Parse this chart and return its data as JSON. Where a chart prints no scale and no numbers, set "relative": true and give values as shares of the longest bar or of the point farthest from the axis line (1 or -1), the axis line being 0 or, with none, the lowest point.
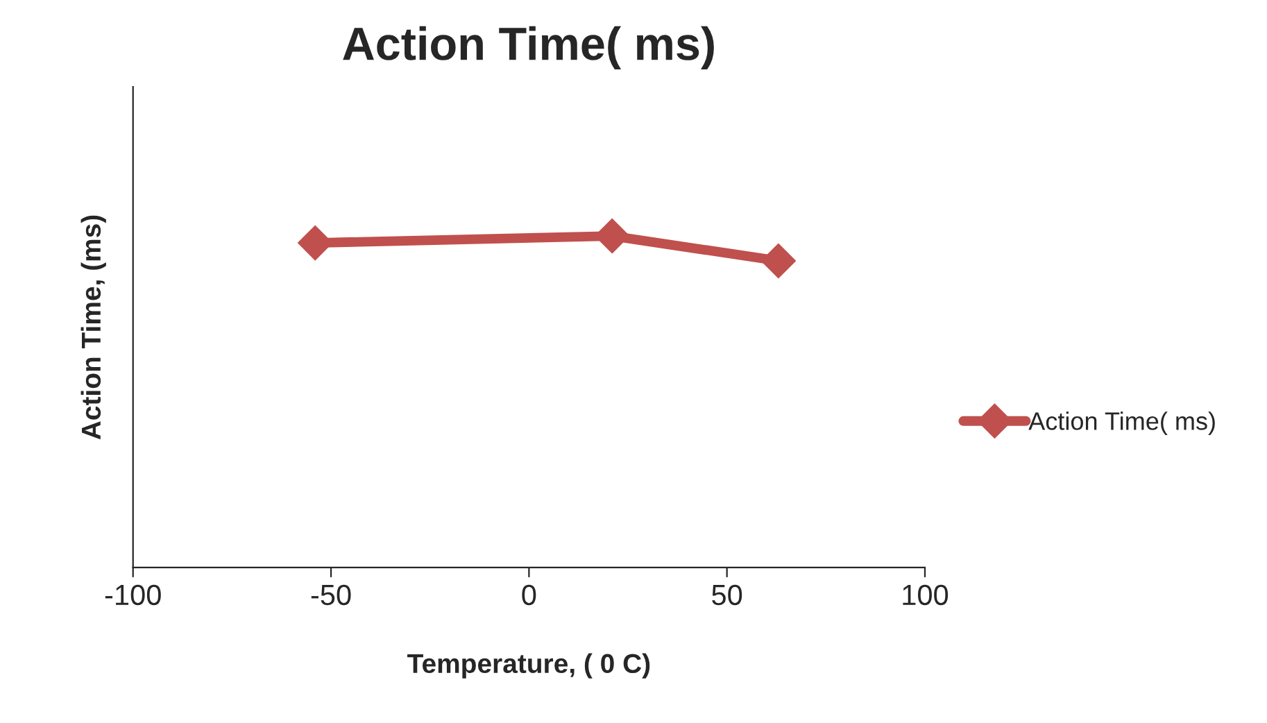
{
  "chart_data": {
    "type": "line",
    "title": "Action Time( ms)",
    "xlabel": "Temperature, ( 0 C)",
    "ylabel": "Action Time, (ms)",
    "x": [
      -54,
      21,
      63
    ],
    "series": [
      {
        "name": "Action Time( ms)",
        "color": "#c0504d",
        "values": [
          0.979,
          1,
          0.925
        ]
      }
    ],
    "relative": true,
    "xlim": [
      -100,
      100
    ],
    "xticks": [
      -100,
      -50,
      0,
      50,
      100
    ],
    "marker": "diamond",
    "legend": "right",
    "tick_labels": "x",
    "grid": false
  }
}
